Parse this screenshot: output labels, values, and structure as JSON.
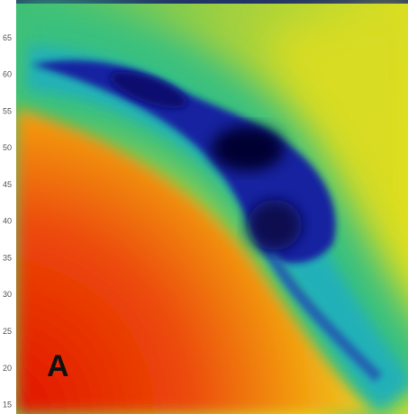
{
  "map": {
    "panel_label": "A",
    "ylim": [
      13.8,
      70.2
    ],
    "yticks": [
      15,
      20,
      25,
      30,
      35,
      40,
      45,
      50,
      55,
      60,
      65
    ]
  }
}
